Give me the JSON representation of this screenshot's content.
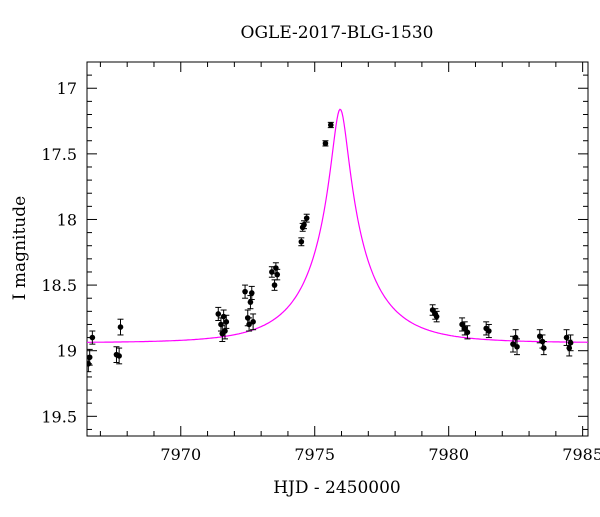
{
  "chart_data": {
    "type": "scatter",
    "title": "OGLE-2017-BLG-1530",
    "xlabel": "HJD - 2450000",
    "ylabel": "I magnitude",
    "xlim": [
      7966.5,
      7985.2
    ],
    "ylim": [
      19.65,
      16.8
    ],
    "y_inverted": true,
    "x_ticks": [
      7970,
      7975,
      7980,
      7985
    ],
    "x_tick_labels": [
      "7970",
      "7975",
      "7980",
      "7985"
    ],
    "y_ticks": [
      17,
      17.5,
      18,
      18.5,
      19,
      19.5
    ],
    "y_tick_labels": [
      "17",
      "17.5",
      "18",
      "18.5",
      "19",
      "19.5"
    ],
    "grid": false,
    "legend": "none",
    "colors": {
      "points": "#000000",
      "model": "#ff00ff"
    },
    "series": [
      {
        "kind": "points_with_errorbars",
        "x": [
          7966.55,
          7966.6,
          7966.7,
          7967.6,
          7967.7,
          7967.75,
          7971.4,
          7971.5,
          7971.55,
          7971.6,
          7971.65,
          7971.7,
          7972.4,
          7972.5,
          7972.55,
          7972.6,
          7972.65,
          7972.7,
          7973.4,
          7973.5,
          7973.55,
          7973.6,
          7974.5,
          7974.55,
          7974.6,
          7974.7,
          7975.4,
          7975.6,
          7979.4,
          7979.5,
          7979.55,
          7980.5,
          7980.6,
          7980.7,
          7981.4,
          7981.5,
          7982.4,
          7982.5,
          7982.55,
          7983.4,
          7983.5,
          7983.55,
          7984.4,
          7984.5,
          7984.55
        ],
        "y": [
          19.1,
          19.05,
          18.9,
          19.03,
          19.04,
          18.82,
          18.72,
          18.8,
          18.87,
          18.74,
          18.85,
          18.78,
          18.55,
          18.75,
          18.8,
          18.63,
          18.56,
          18.78,
          18.4,
          18.5,
          18.37,
          18.42,
          18.17,
          18.06,
          18.04,
          17.99,
          17.42,
          17.28,
          18.69,
          18.72,
          18.74,
          18.8,
          18.83,
          18.86,
          18.83,
          18.85,
          18.95,
          18.9,
          18.97,
          18.89,
          18.93,
          18.98,
          18.9,
          18.98,
          18.94
        ],
        "err": [
          0.06,
          0.06,
          0.05,
          0.06,
          0.06,
          0.06,
          0.05,
          0.05,
          0.06,
          0.05,
          0.06,
          0.05,
          0.05,
          0.06,
          0.05,
          0.05,
          0.05,
          0.06,
          0.04,
          0.04,
          0.04,
          0.04,
          0.03,
          0.03,
          0.03,
          0.03,
          0.02,
          0.02,
          0.04,
          0.04,
          0.04,
          0.05,
          0.05,
          0.05,
          0.05,
          0.05,
          0.06,
          0.06,
          0.06,
          0.05,
          0.05,
          0.05,
          0.06,
          0.06,
          0.06
        ]
      },
      {
        "kind": "model_curve",
        "peak_x": 7975.95,
        "peak_y": 17.16,
        "baseline_y": 18.94
      }
    ]
  }
}
